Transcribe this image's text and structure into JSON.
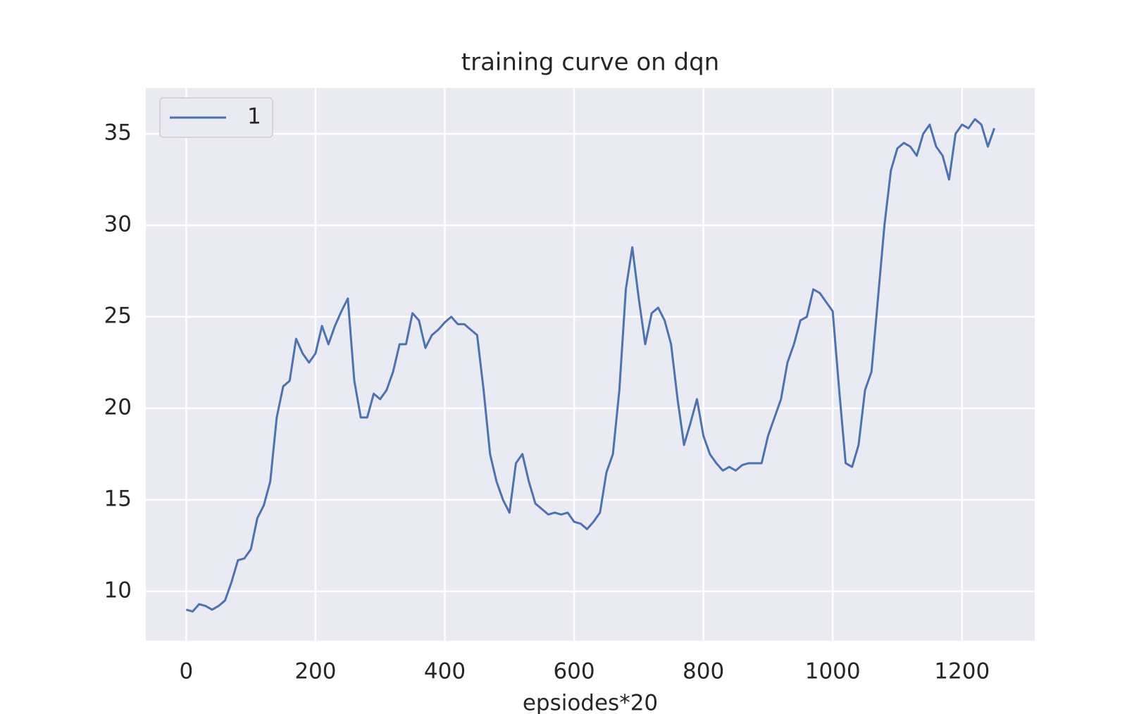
{
  "chart_data": {
    "type": "line",
    "title": "training curve on dqn",
    "x_label": "epsiodes*20",
    "x": [
      0,
      10,
      20,
      30,
      40,
      50,
      60,
      70,
      80,
      90,
      100,
      110,
      120,
      130,
      140,
      150,
      160,
      170,
      180,
      190,
      200,
      210,
      220,
      230,
      240,
      250,
      260,
      270,
      280,
      290,
      300,
      310,
      320,
      330,
      340,
      350,
      360,
      370,
      380,
      390,
      400,
      410,
      420,
      430,
      440,
      450,
      460,
      470,
      480,
      490,
      500,
      510,
      520,
      530,
      540,
      550,
      560,
      570,
      580,
      590,
      600,
      610,
      620,
      630,
      640,
      650,
      660,
      670,
      680,
      690,
      700,
      710,
      720,
      730,
      740,
      750,
      760,
      770,
      780,
      790,
      800,
      810,
      820,
      830,
      840,
      850,
      860,
      870,
      880,
      890,
      900,
      910,
      920,
      930,
      940,
      950,
      960,
      970,
      980,
      990,
      1000,
      1010,
      1020,
      1030,
      1040,
      1050,
      1060,
      1070,
      1080,
      1090,
      1100,
      1110,
      1120,
      1130,
      1140,
      1150,
      1160,
      1170,
      1180,
      1190,
      1200,
      1210,
      1220,
      1230,
      1240,
      1250
    ],
    "series": [
      {
        "name": "1",
        "color": "#4c72b0",
        "values": [
          9.0,
          8.9,
          9.3,
          9.2,
          9.0,
          9.2,
          9.5,
          10.5,
          11.7,
          11.8,
          12.3,
          14.0,
          14.7,
          16.0,
          19.5,
          21.2,
          21.5,
          23.8,
          23.0,
          22.5,
          23.0,
          24.5,
          23.5,
          24.5,
          25.3,
          26.0,
          21.5,
          19.5,
          19.5,
          20.8,
          20.5,
          21.0,
          22.0,
          23.5,
          23.5,
          25.2,
          24.8,
          23.3,
          24.0,
          24.3,
          24.7,
          25.0,
          24.6,
          24.6,
          24.3,
          24.0,
          21.0,
          17.5,
          16.0,
          15.0,
          14.3,
          17.0,
          17.5,
          16.0,
          14.8,
          14.5,
          14.2,
          14.3,
          14.2,
          14.3,
          13.8,
          13.7,
          13.4,
          13.8,
          14.3,
          16.5,
          17.5,
          21.0,
          26.5,
          28.8,
          26.0,
          23.5,
          25.2,
          25.5,
          24.8,
          23.5,
          20.5,
          18.0,
          19.2,
          20.5,
          18.5,
          17.5,
          17.0,
          16.6,
          16.8,
          16.6,
          16.9,
          17.0,
          17.0,
          17.0,
          18.5,
          19.5,
          20.5,
          22.5,
          23.5,
          24.8,
          25.0,
          26.5,
          26.3,
          25.8,
          25.3,
          21.0,
          17.0,
          16.8,
          18.0,
          21.0,
          22.0,
          26.0,
          30.0,
          33.0,
          34.2,
          34.5,
          34.3,
          33.8,
          35.0,
          35.5,
          34.3,
          33.8,
          32.5,
          35.0,
          35.5,
          35.3,
          35.8,
          35.5,
          34.3,
          35.3
        ]
      }
    ],
    "xlim": [
      -62.5,
      1312.5
    ],
    "xticks": [
      0,
      200,
      400,
      600,
      800,
      1000,
      1200
    ],
    "ylim": [
      7.3,
      37.5
    ],
    "yticks": [
      10,
      15,
      20,
      25,
      30,
      35
    ],
    "grid": true,
    "background": "#eaeaf2",
    "legend": "upper-left"
  }
}
